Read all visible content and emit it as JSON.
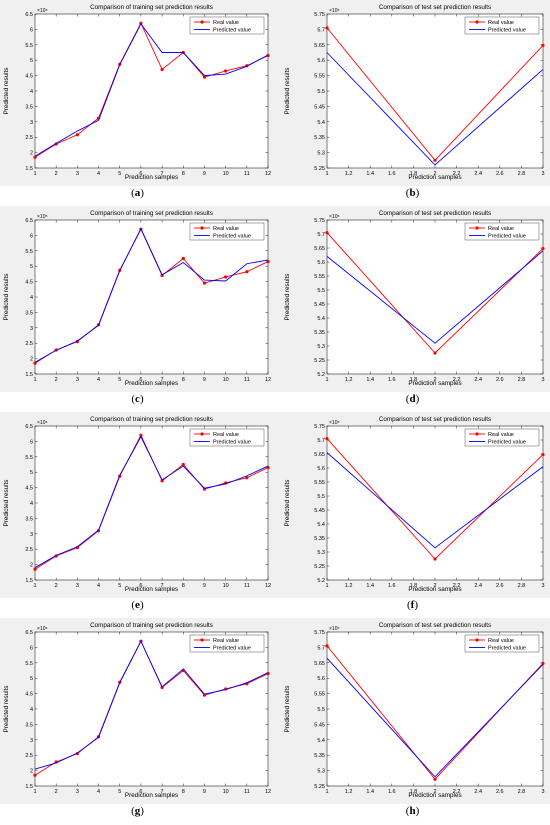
{
  "chart_data": [
    {
      "type": "line",
      "caption": "a",
      "title": "Comparison of training set prediction results",
      "xlabel": "Prediction samples",
      "ylabel": "Predicted results",
      "exponent": "×10⁵",
      "x": [
        1,
        2,
        3,
        4,
        5,
        6,
        7,
        8,
        9,
        10,
        11,
        12
      ],
      "xticks": [
        "1",
        "2",
        "3",
        "4",
        "5",
        "6",
        "7",
        "8",
        "9",
        "10",
        "11",
        "12"
      ],
      "xlim": [
        1,
        12
      ],
      "ylim": [
        1.5,
        6.5
      ],
      "yticks": [
        "1.5",
        "2",
        "2.5",
        "3",
        "3.5",
        "4",
        "4.5",
        "5",
        "5.5",
        "6",
        "6.5"
      ],
      "legend": "top-right",
      "series": [
        {
          "name": "Real value",
          "color": "#ff0000",
          "marker": "dot",
          "values": [
            1.85,
            2.28,
            2.58,
            3.12,
            4.87,
            6.2,
            4.7,
            5.25,
            4.45,
            4.65,
            4.82,
            5.15
          ]
        },
        {
          "name": "Predicted value",
          "color": "#0000ff",
          "values": [
            1.88,
            2.3,
            2.7,
            3.05,
            4.85,
            6.18,
            5.25,
            5.25,
            4.5,
            4.55,
            4.8,
            5.17
          ]
        }
      ]
    },
    {
      "type": "line",
      "caption": "b",
      "title": "Comparison of test set prediction results",
      "xlabel": "Prediction samples",
      "ylabel": "Predicted results",
      "exponent": "×10⁵",
      "x": [
        1,
        2,
        3
      ],
      "xticks": [
        "1",
        "1.2",
        "1.4",
        "1.6",
        "1.8",
        "2",
        "2.2",
        "2.4",
        "2.6",
        "2.8",
        "3"
      ],
      "xlim": [
        1,
        3
      ],
      "ylim": [
        5.25,
        5.75
      ],
      "yticks": [
        "5.25",
        "5.3",
        "5.35",
        "5.4",
        "5.45",
        "5.5",
        "5.55",
        "5.6",
        "5.65",
        "5.7",
        "5.75"
      ],
      "legend": "top-right",
      "series": [
        {
          "name": "Real value",
          "color": "#ff0000",
          "marker": "dot",
          "values": [
            5.705,
            5.275,
            5.648
          ]
        },
        {
          "name": "Predicted value",
          "color": "#0000ff",
          "values": [
            5.625,
            5.26,
            5.57
          ]
        }
      ]
    },
    {
      "type": "line",
      "caption": "c",
      "title": "Comparison of training set prediction results",
      "xlabel": "Prediction samples",
      "ylabel": "Predicted results",
      "exponent": "×10⁵",
      "x": [
        1,
        2,
        3,
        4,
        5,
        6,
        7,
        8,
        9,
        10,
        11,
        12
      ],
      "xticks": [
        "1",
        "2",
        "3",
        "4",
        "5",
        "6",
        "7",
        "8",
        "9",
        "10",
        "11",
        "12"
      ],
      "xlim": [
        1,
        12
      ],
      "ylim": [
        1.5,
        6.5
      ],
      "yticks": [
        "1.5",
        "2",
        "2.5",
        "3",
        "3.5",
        "4",
        "4.5",
        "5",
        "5.5",
        "6",
        "6.5"
      ],
      "legend": "top-right",
      "series": [
        {
          "name": "Real value",
          "color": "#ff0000",
          "marker": "dot",
          "values": [
            1.85,
            2.28,
            2.55,
            3.1,
            4.87,
            6.2,
            4.7,
            5.25,
            4.45,
            4.65,
            4.82,
            5.15
          ]
        },
        {
          "name": "Predicted value",
          "color": "#0000ff",
          "values": [
            1.88,
            2.27,
            2.57,
            3.08,
            4.85,
            6.22,
            4.72,
            5.12,
            4.55,
            4.52,
            5.08,
            5.2
          ]
        }
      ]
    },
    {
      "type": "line",
      "caption": "d",
      "title": "Comparison of test set prediction results",
      "xlabel": "Prediction samples",
      "ylabel": "Predicted results",
      "exponent": "×10⁵",
      "x": [
        1,
        2,
        3
      ],
      "xticks": [
        "1",
        "1.2",
        "1.4",
        "1.6",
        "1.8",
        "2",
        "2.2",
        "2.4",
        "2.6",
        "2.8",
        "3"
      ],
      "xlim": [
        1,
        3
      ],
      "ylim": [
        5.2,
        5.75
      ],
      "yticks": [
        "5.2",
        "5.25",
        "5.3",
        "5.35",
        "5.4",
        "5.45",
        "5.5",
        "5.55",
        "5.6",
        "5.65",
        "5.7",
        "5.75"
      ],
      "legend": "top-right",
      "series": [
        {
          "name": "Real value",
          "color": "#ff0000",
          "marker": "dot",
          "values": [
            5.705,
            5.275,
            5.648
          ]
        },
        {
          "name": "Predicted value",
          "color": "#0000ff",
          "values": [
            5.62,
            5.31,
            5.64
          ]
        }
      ]
    },
    {
      "type": "line",
      "caption": "e",
      "title": "Comparison of training set prediction results",
      "xlabel": "Prediction samples",
      "ylabel": "Predicted results",
      "exponent": "×10⁵",
      "x": [
        1,
        2,
        3,
        4,
        5,
        6,
        7,
        8,
        9,
        10,
        11,
        12
      ],
      "xticks": [
        "1",
        "2",
        "3",
        "4",
        "5",
        "6",
        "7",
        "8",
        "9",
        "10",
        "11",
        "12"
      ],
      "xlim": [
        1,
        12
      ],
      "ylim": [
        1.5,
        6.5
      ],
      "yticks": [
        "1.5",
        "2",
        "2.5",
        "3",
        "3.5",
        "4",
        "4.5",
        "5",
        "5.5",
        "6",
        "6.5"
      ],
      "legend": "top-right",
      "series": [
        {
          "name": "Real value",
          "color": "#ff0000",
          "marker": "dot",
          "values": [
            1.85,
            2.28,
            2.55,
            3.1,
            4.87,
            6.2,
            4.72,
            5.25,
            4.45,
            4.65,
            4.82,
            5.15
          ]
        },
        {
          "name": "Predicted value",
          "color": "#0000ff",
          "values": [
            1.9,
            2.3,
            2.58,
            3.12,
            4.9,
            6.15,
            4.75,
            5.2,
            4.48,
            4.62,
            4.88,
            5.2
          ]
        }
      ]
    },
    {
      "type": "line",
      "caption": "f",
      "title": "Comparison of test set prediction results",
      "xlabel": "Prediction samples",
      "ylabel": "Predicted results",
      "exponent": "×10⁵",
      "x": [
        1,
        2,
        3
      ],
      "xticks": [
        "1",
        "1.2",
        "1.4",
        "1.6",
        "1.8",
        "2",
        "2.2",
        "2.4",
        "2.6",
        "2.8",
        "3"
      ],
      "xlim": [
        1,
        3
      ],
      "ylim": [
        5.2,
        5.75
      ],
      "yticks": [
        "5.2",
        "5.25",
        "5.3",
        "5.35",
        "5.4",
        "5.45",
        "5.5",
        "5.55",
        "5.6",
        "5.65",
        "5.7",
        "5.75"
      ],
      "legend": "top-right",
      "series": [
        {
          "name": "Real value",
          "color": "#ff0000",
          "marker": "dot",
          "values": [
            5.705,
            5.275,
            5.648
          ]
        },
        {
          "name": "Predicted value",
          "color": "#0000ff",
          "values": [
            5.655,
            5.315,
            5.605
          ]
        }
      ]
    },
    {
      "type": "line",
      "caption": "g",
      "title": "Comparison of training set prediction results",
      "xlabel": "Prediction samples",
      "ylabel": "Predicted results",
      "exponent": "×10⁵",
      "x": [
        1,
        2,
        3,
        4,
        5,
        6,
        7,
        8,
        9,
        10,
        11,
        12
      ],
      "xticks": [
        "1",
        "2",
        "3",
        "4",
        "5",
        "6",
        "7",
        "8",
        "9",
        "10",
        "11",
        "12"
      ],
      "xlim": [
        1,
        12
      ],
      "ylim": [
        1.5,
        6.5
      ],
      "yticks": [
        "1.5",
        "2",
        "2.5",
        "3",
        "3.5",
        "4",
        "4.5",
        "5",
        "5.5",
        "6",
        "6.5"
      ],
      "legend": "top-right",
      "series": [
        {
          "name": "Real value",
          "color": "#ff0000",
          "marker": "dot",
          "values": [
            1.85,
            2.28,
            2.55,
            3.1,
            4.87,
            6.2,
            4.7,
            5.25,
            4.45,
            4.65,
            4.82,
            5.15
          ]
        },
        {
          "name": "Predicted value",
          "color": "#0000ff",
          "values": [
            2.05,
            2.25,
            2.57,
            3.08,
            4.85,
            6.2,
            4.72,
            5.3,
            4.48,
            4.63,
            4.85,
            5.18
          ]
        }
      ]
    },
    {
      "type": "line",
      "caption": "h",
      "title": "Comparison of test set prediction results",
      "xlabel": "Prediction samples",
      "ylabel": "Predicted results",
      "exponent": "×10⁵",
      "x": [
        1,
        2,
        3
      ],
      "xticks": [
        "1",
        "1.2",
        "1.4",
        "1.6",
        "1.8",
        "2",
        "2.2",
        "2.4",
        "2.6",
        "2.8",
        "3"
      ],
      "xlim": [
        1,
        3
      ],
      "ylim": [
        5.25,
        5.75
      ],
      "yticks": [
        "5.25",
        "5.3",
        "5.35",
        "5.4",
        "5.45",
        "5.5",
        "5.55",
        "5.6",
        "5.65",
        "5.7",
        "5.75"
      ],
      "legend": "top-right",
      "series": [
        {
          "name": "Real value",
          "color": "#ff0000",
          "marker": "dot",
          "values": [
            5.705,
            5.272,
            5.648
          ]
        },
        {
          "name": "Predicted value",
          "color": "#0000ff",
          "values": [
            5.665,
            5.28,
            5.645
          ]
        }
      ]
    }
  ]
}
